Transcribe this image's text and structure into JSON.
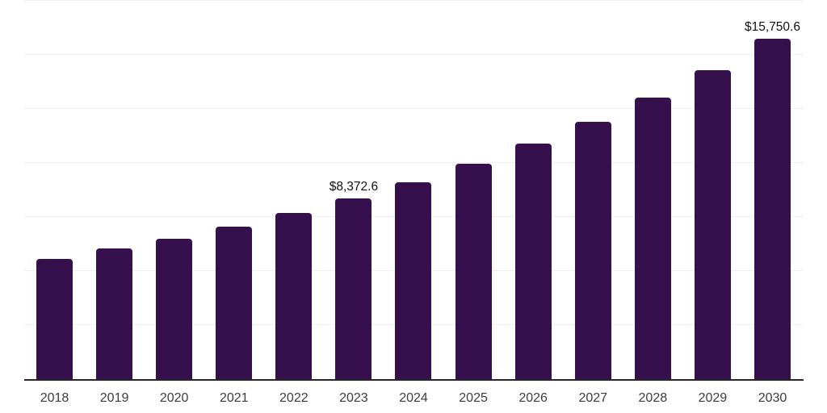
{
  "chart_data": {
    "type": "bar",
    "title": "",
    "xlabel": "",
    "ylabel": "",
    "categories": [
      "2018",
      "2019",
      "2020",
      "2021",
      "2022",
      "2023",
      "2024",
      "2025",
      "2026",
      "2027",
      "2028",
      "2029",
      "2030"
    ],
    "values": [
      5550,
      6040,
      6490,
      7050,
      7690,
      8372.6,
      9100,
      9960,
      10900,
      11900,
      13020,
      14290,
      15750.6
    ],
    "data_labels": [
      {
        "index": 5,
        "text": "$8,372.6"
      },
      {
        "index": 12,
        "text": "$15,750.6"
      }
    ],
    "ylim": [
      0,
      17500
    ],
    "grid_step": 2500,
    "grid": "horizontal",
    "y_axis_tick_labels": "none",
    "legend_position": "none",
    "colors": {
      "bar": "#35104d",
      "axis_line": "#262626",
      "gridline": "#f0f0f3",
      "tick_label": "#3d3d3d",
      "value_label": "#111111",
      "background": "#ffffff"
    }
  }
}
